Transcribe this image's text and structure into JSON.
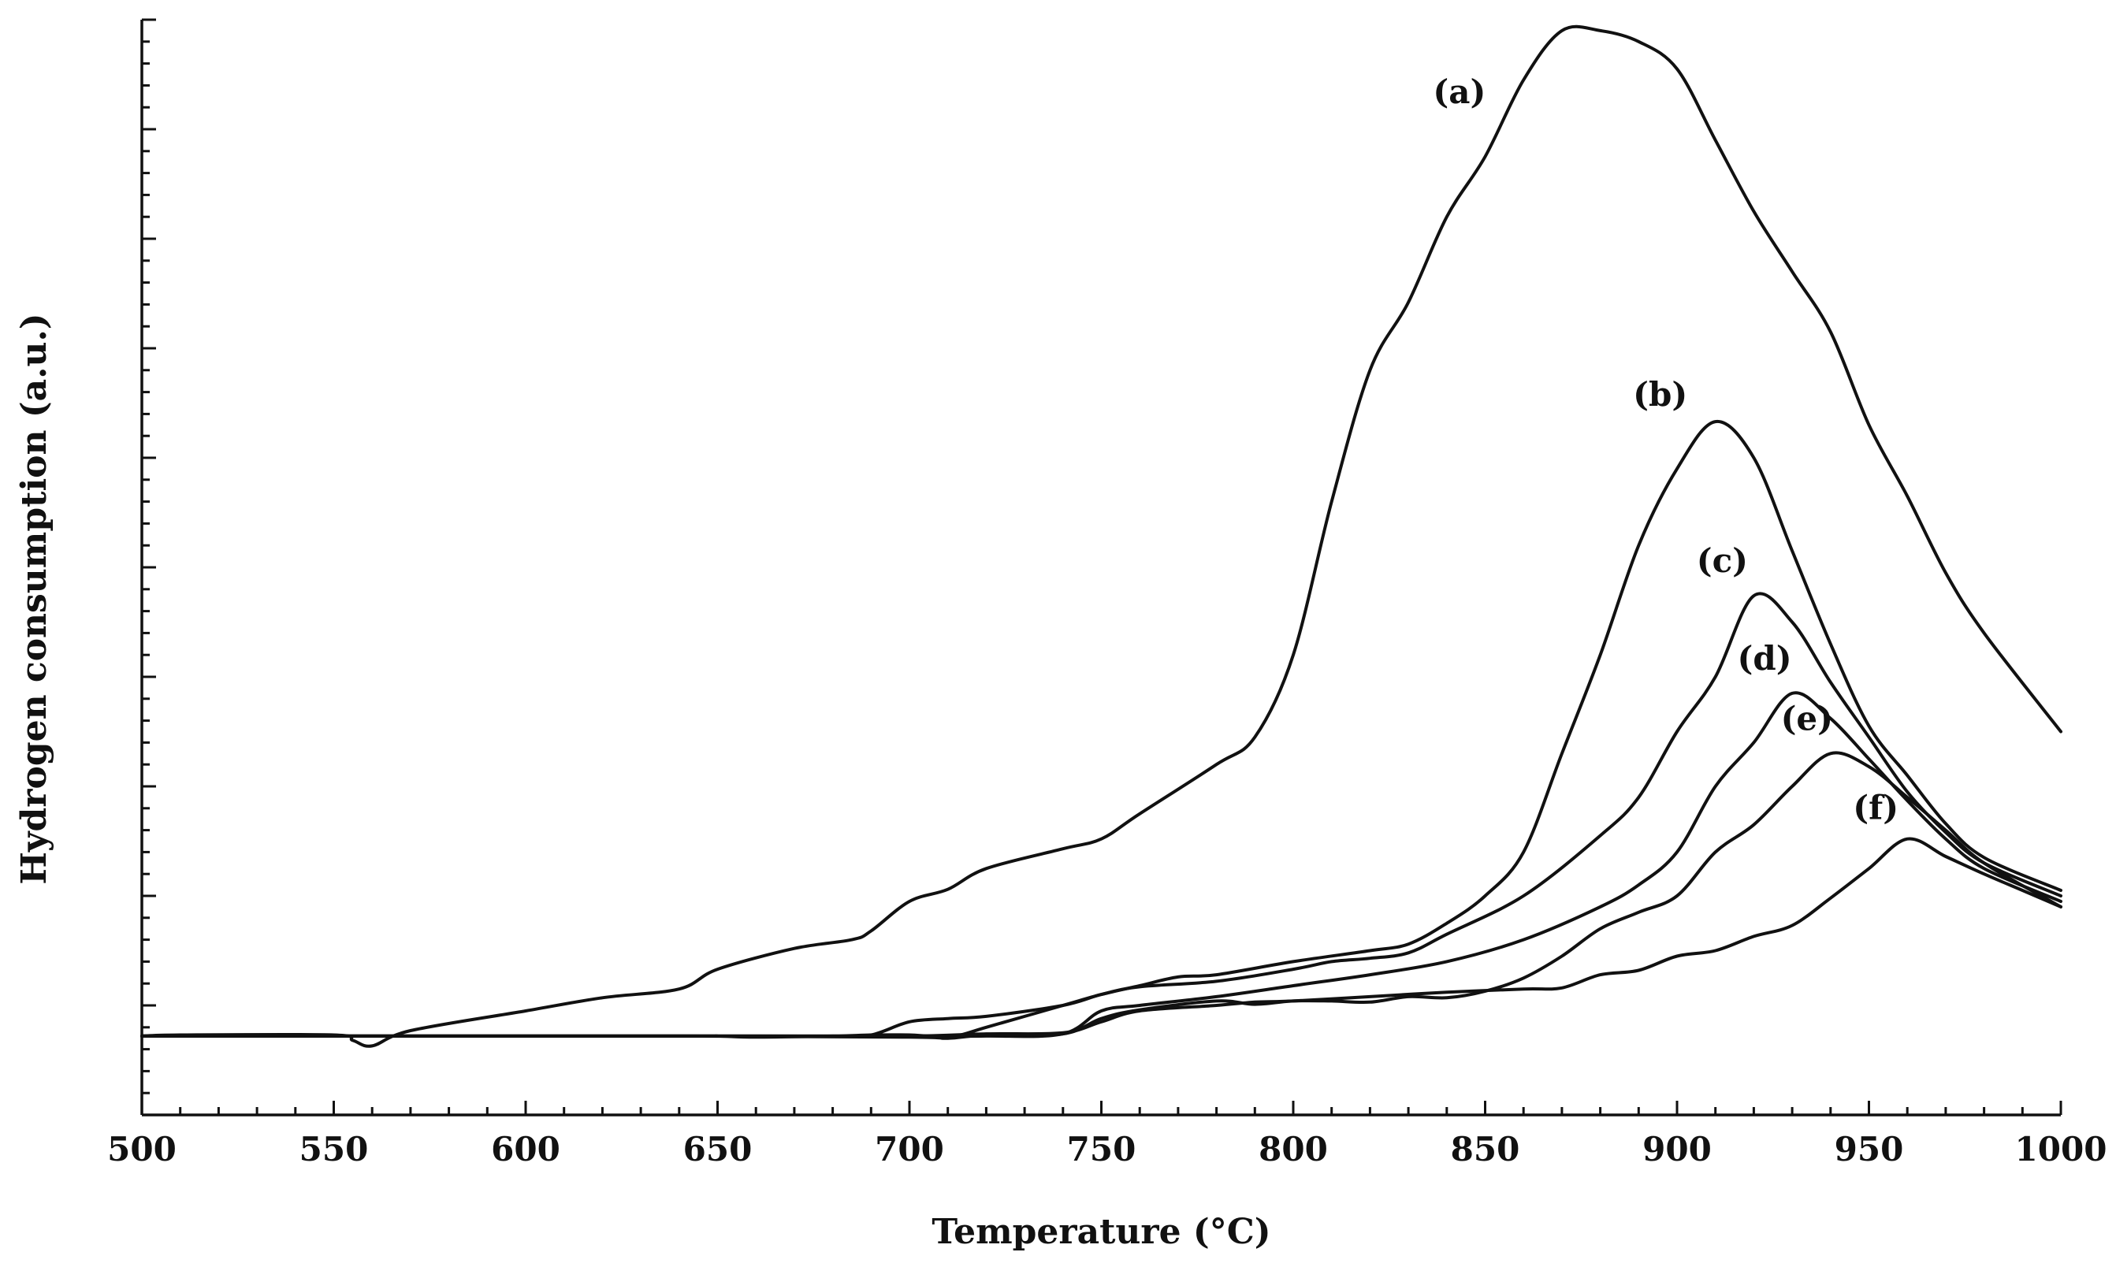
{
  "chart_data": {
    "type": "line",
    "title": "",
    "xlabel": "Temperature (°C)",
    "ylabel": "Hydrogen consumption (a.u.)",
    "xlim": [
      500,
      1000
    ],
    "ylim": [
      0,
      1000
    ],
    "x_ticks": [
      500,
      550,
      600,
      650,
      700,
      750,
      800,
      850,
      900,
      950,
      1000
    ],
    "y_ticks_labeled": false,
    "grid": false,
    "legend": "inline labels near peaks",
    "series": [
      {
        "name": "(a)",
        "points": [
          [
            500,
            72
          ],
          [
            510,
            73
          ],
          [
            550,
            73
          ],
          [
            555,
            68
          ],
          [
            560,
            63
          ],
          [
            570,
            77
          ],
          [
            600,
            95
          ],
          [
            620,
            107
          ],
          [
            640,
            115
          ],
          [
            650,
            133
          ],
          [
            670,
            152
          ],
          [
            685,
            160
          ],
          [
            690,
            168
          ],
          [
            700,
            195
          ],
          [
            710,
            206
          ],
          [
            720,
            225
          ],
          [
            740,
            243
          ],
          [
            750,
            252
          ],
          [
            760,
            275
          ],
          [
            780,
            320
          ],
          [
            790,
            345
          ],
          [
            800,
            420
          ],
          [
            810,
            560
          ],
          [
            820,
            680
          ],
          [
            830,
            742
          ],
          [
            840,
            820
          ],
          [
            850,
            875
          ],
          [
            860,
            945
          ],
          [
            870,
            990
          ],
          [
            880,
            990
          ],
          [
            890,
            980
          ],
          [
            900,
            955
          ],
          [
            910,
            890
          ],
          [
            920,
            825
          ],
          [
            930,
            770
          ],
          [
            940,
            715
          ],
          [
            950,
            630
          ],
          [
            960,
            565
          ],
          [
            970,
            495
          ],
          [
            980,
            440
          ],
          [
            1000,
            350
          ]
        ]
      },
      {
        "name": "(b)",
        "points": [
          [
            500,
            72
          ],
          [
            550,
            72
          ],
          [
            640,
            72
          ],
          [
            650,
            72
          ],
          [
            660,
            71
          ],
          [
            680,
            72
          ],
          [
            690,
            73
          ],
          [
            700,
            73
          ],
          [
            705,
            72
          ],
          [
            712,
            72
          ],
          [
            720,
            80
          ],
          [
            740,
            100
          ],
          [
            750,
            110
          ],
          [
            760,
            118
          ],
          [
            770,
            126
          ],
          [
            780,
            128
          ],
          [
            800,
            140
          ],
          [
            820,
            150
          ],
          [
            830,
            156
          ],
          [
            840,
            175
          ],
          [
            850,
            200
          ],
          [
            860,
            240
          ],
          [
            870,
            330
          ],
          [
            880,
            420
          ],
          [
            890,
            520
          ],
          [
            900,
            590
          ],
          [
            910,
            633
          ],
          [
            920,
            600
          ],
          [
            930,
            515
          ],
          [
            940,
            430
          ],
          [
            950,
            355
          ],
          [
            960,
            310
          ],
          [
            970,
            266
          ],
          [
            980,
            235
          ],
          [
            1000,
            205
          ]
        ]
      },
      {
        "name": "(c)",
        "points": [
          [
            500,
            72
          ],
          [
            550,
            72
          ],
          [
            640,
            72
          ],
          [
            680,
            72
          ],
          [
            690,
            73
          ],
          [
            700,
            85
          ],
          [
            710,
            88
          ],
          [
            720,
            90
          ],
          [
            740,
            100
          ],
          [
            750,
            110
          ],
          [
            760,
            117
          ],
          [
            780,
            122
          ],
          [
            800,
            133
          ],
          [
            810,
            140
          ],
          [
            820,
            143
          ],
          [
            830,
            148
          ],
          [
            840,
            165
          ],
          [
            860,
            200
          ],
          [
            880,
            255
          ],
          [
            890,
            290
          ],
          [
            900,
            350
          ],
          [
            910,
            400
          ],
          [
            920,
            474
          ],
          [
            930,
            450
          ],
          [
            940,
            395
          ],
          [
            950,
            345
          ],
          [
            960,
            295
          ],
          [
            970,
            258
          ],
          [
            980,
            230
          ],
          [
            1000,
            200
          ]
        ]
      },
      {
        "name": "(d)",
        "points": [
          [
            500,
            72
          ],
          [
            550,
            72
          ],
          [
            640,
            72
          ],
          [
            660,
            72
          ],
          [
            680,
            72
          ],
          [
            700,
            72
          ],
          [
            720,
            72
          ],
          [
            740,
            74
          ],
          [
            750,
            95
          ],
          [
            760,
            100
          ],
          [
            780,
            108
          ],
          [
            800,
            118
          ],
          [
            820,
            128
          ],
          [
            840,
            140
          ],
          [
            860,
            160
          ],
          [
            880,
            190
          ],
          [
            890,
            210
          ],
          [
            900,
            240
          ],
          [
            910,
            300
          ],
          [
            920,
            340
          ],
          [
            930,
            385
          ],
          [
            940,
            362
          ],
          [
            950,
            325
          ],
          [
            960,
            287
          ],
          [
            970,
            252
          ],
          [
            980,
            225
          ],
          [
            1000,
            195
          ]
        ]
      },
      {
        "name": "(e)",
        "points": [
          [
            500,
            72
          ],
          [
            550,
            72
          ],
          [
            640,
            72
          ],
          [
            700,
            71
          ],
          [
            710,
            70
          ],
          [
            720,
            73
          ],
          [
            740,
            74
          ],
          [
            750,
            88
          ],
          [
            760,
            96
          ],
          [
            780,
            104
          ],
          [
            790,
            101
          ],
          [
            800,
            104
          ],
          [
            810,
            104
          ],
          [
            820,
            103
          ],
          [
            830,
            108
          ],
          [
            840,
            107
          ],
          [
            850,
            113
          ],
          [
            860,
            125
          ],
          [
            870,
            145
          ],
          [
            880,
            170
          ],
          [
            890,
            185
          ],
          [
            900,
            200
          ],
          [
            910,
            240
          ],
          [
            920,
            265
          ],
          [
            930,
            300
          ],
          [
            940,
            330
          ],
          [
            950,
            318
          ],
          [
            960,
            290
          ],
          [
            970,
            260
          ],
          [
            980,
            230
          ],
          [
            1000,
            190
          ]
        ]
      },
      {
        "name": "(f)",
        "points": [
          [
            500,
            72
          ],
          [
            550,
            72
          ],
          [
            640,
            72
          ],
          [
            660,
            72
          ],
          [
            700,
            72
          ],
          [
            720,
            74
          ],
          [
            740,
            75
          ],
          [
            750,
            85
          ],
          [
            760,
            95
          ],
          [
            780,
            100
          ],
          [
            790,
            103
          ],
          [
            800,
            104
          ],
          [
            820,
            108
          ],
          [
            840,
            112
          ],
          [
            860,
            115
          ],
          [
            870,
            116
          ],
          [
            880,
            128
          ],
          [
            890,
            132
          ],
          [
            900,
            145
          ],
          [
            910,
            150
          ],
          [
            920,
            163
          ],
          [
            930,
            173
          ],
          [
            940,
            198
          ],
          [
            950,
            225
          ],
          [
            960,
            252
          ],
          [
            970,
            236
          ],
          [
            980,
            220
          ],
          [
            990,
            205
          ],
          [
            1000,
            190
          ]
        ]
      }
    ]
  }
}
